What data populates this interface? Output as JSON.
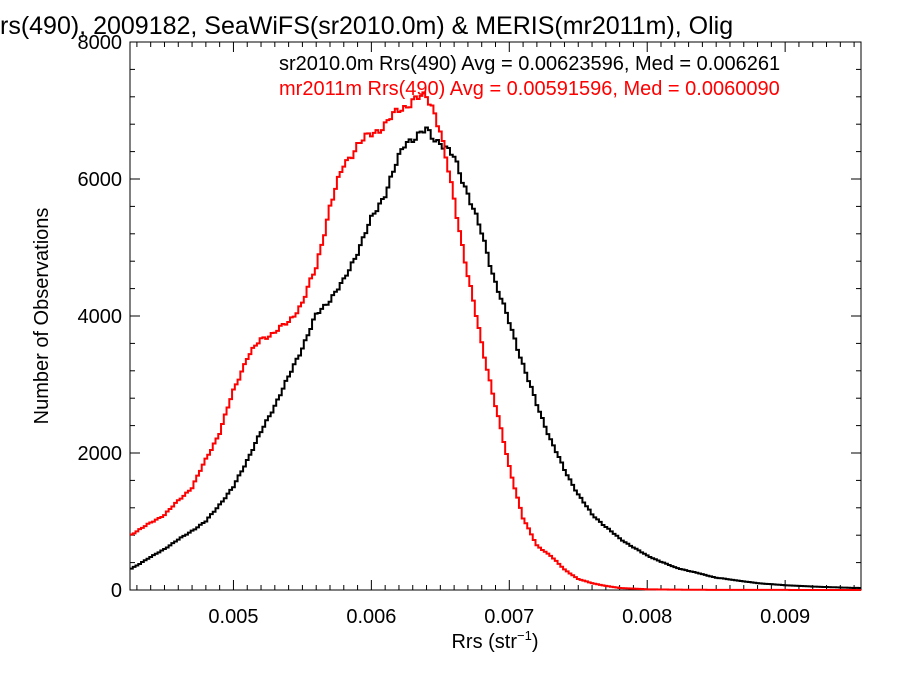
{
  "chart_data": {
    "type": "line",
    "title": "rs(490), 2009182, SeaWiFS(sr2010.0m) & MERIS(mr2011m), Olig",
    "xlabel": "Rrs (str",
    "xlabel_sup": "−1",
    "xlabel_close": ")",
    "ylabel": "Number of Observations",
    "xlim": [
      0.00425,
      0.00955
    ],
    "ylim": [
      0,
      8000
    ],
    "x_ticks": [
      0.005,
      0.006,
      0.007,
      0.008,
      0.009
    ],
    "x_tick_labels": [
      "0.005",
      "0.006",
      "0.007",
      "0.008",
      "0.009"
    ],
    "y_ticks": [
      0,
      2000,
      4000,
      6000,
      8000
    ],
    "y_tick_labels": [
      "0",
      "2000",
      "4000",
      "6000",
      "8000"
    ],
    "grid": false,
    "legend_position": "top-right",
    "series": [
      {
        "name": "sr2010.0m Rrs(490) Avg = 0.00623596, Med = 0.006261",
        "color": "#000000",
        "x": [
          0.00425,
          0.0045,
          0.0048,
          0.005,
          0.0052,
          0.0054,
          0.0056,
          0.0058,
          0.006,
          0.0061,
          0.0062,
          0.00625,
          0.0063,
          0.00635,
          0.0064,
          0.00645,
          0.0065,
          0.0066,
          0.0067,
          0.0068,
          0.0069,
          0.007,
          0.0071,
          0.0072,
          0.0073,
          0.0074,
          0.0075,
          0.0076,
          0.0078,
          0.008,
          0.0082,
          0.0085,
          0.0088,
          0.009,
          0.0092,
          0.0095
        ],
        "y": [
          300,
          600,
          1000,
          1500,
          2300,
          3100,
          4000,
          4500,
          5400,
          5800,
          6300,
          6550,
          6600,
          6650,
          6700,
          6600,
          6550,
          6300,
          5800,
          5200,
          4500,
          3900,
          3300,
          2700,
          2200,
          1750,
          1400,
          1100,
          750,
          500,
          330,
          180,
          100,
          70,
          50,
          30
        ]
      },
      {
        "name": "mr2011m Rrs(490) Avg = 0.00591596, Med = 0.0060090",
        "color": "#ff0000",
        "x": [
          0.00425,
          0.0045,
          0.0047,
          0.0049,
          0.005,
          0.0051,
          0.0052,
          0.0054,
          0.0055,
          0.0056,
          0.0057,
          0.0058,
          0.0059,
          0.006,
          0.0061,
          0.0062,
          0.0063,
          0.0064,
          0.00645,
          0.0065,
          0.0066,
          0.0067,
          0.0068,
          0.0069,
          0.007,
          0.0071,
          0.0072,
          0.0073,
          0.0074,
          0.0075,
          0.0076,
          0.0077,
          0.0078,
          0.008,
          0.0082,
          0.0085,
          0.009,
          0.0095
        ],
        "y": [
          800,
          1100,
          1500,
          2300,
          2900,
          3400,
          3650,
          3900,
          4200,
          4700,
          5600,
          6200,
          6500,
          6650,
          6800,
          7000,
          7150,
          7200,
          7050,
          6700,
          5700,
          4600,
          3600,
          2700,
          1800,
          1050,
          650,
          500,
          300,
          160,
          100,
          60,
          30,
          10,
          5,
          2,
          1,
          0
        ]
      }
    ]
  }
}
